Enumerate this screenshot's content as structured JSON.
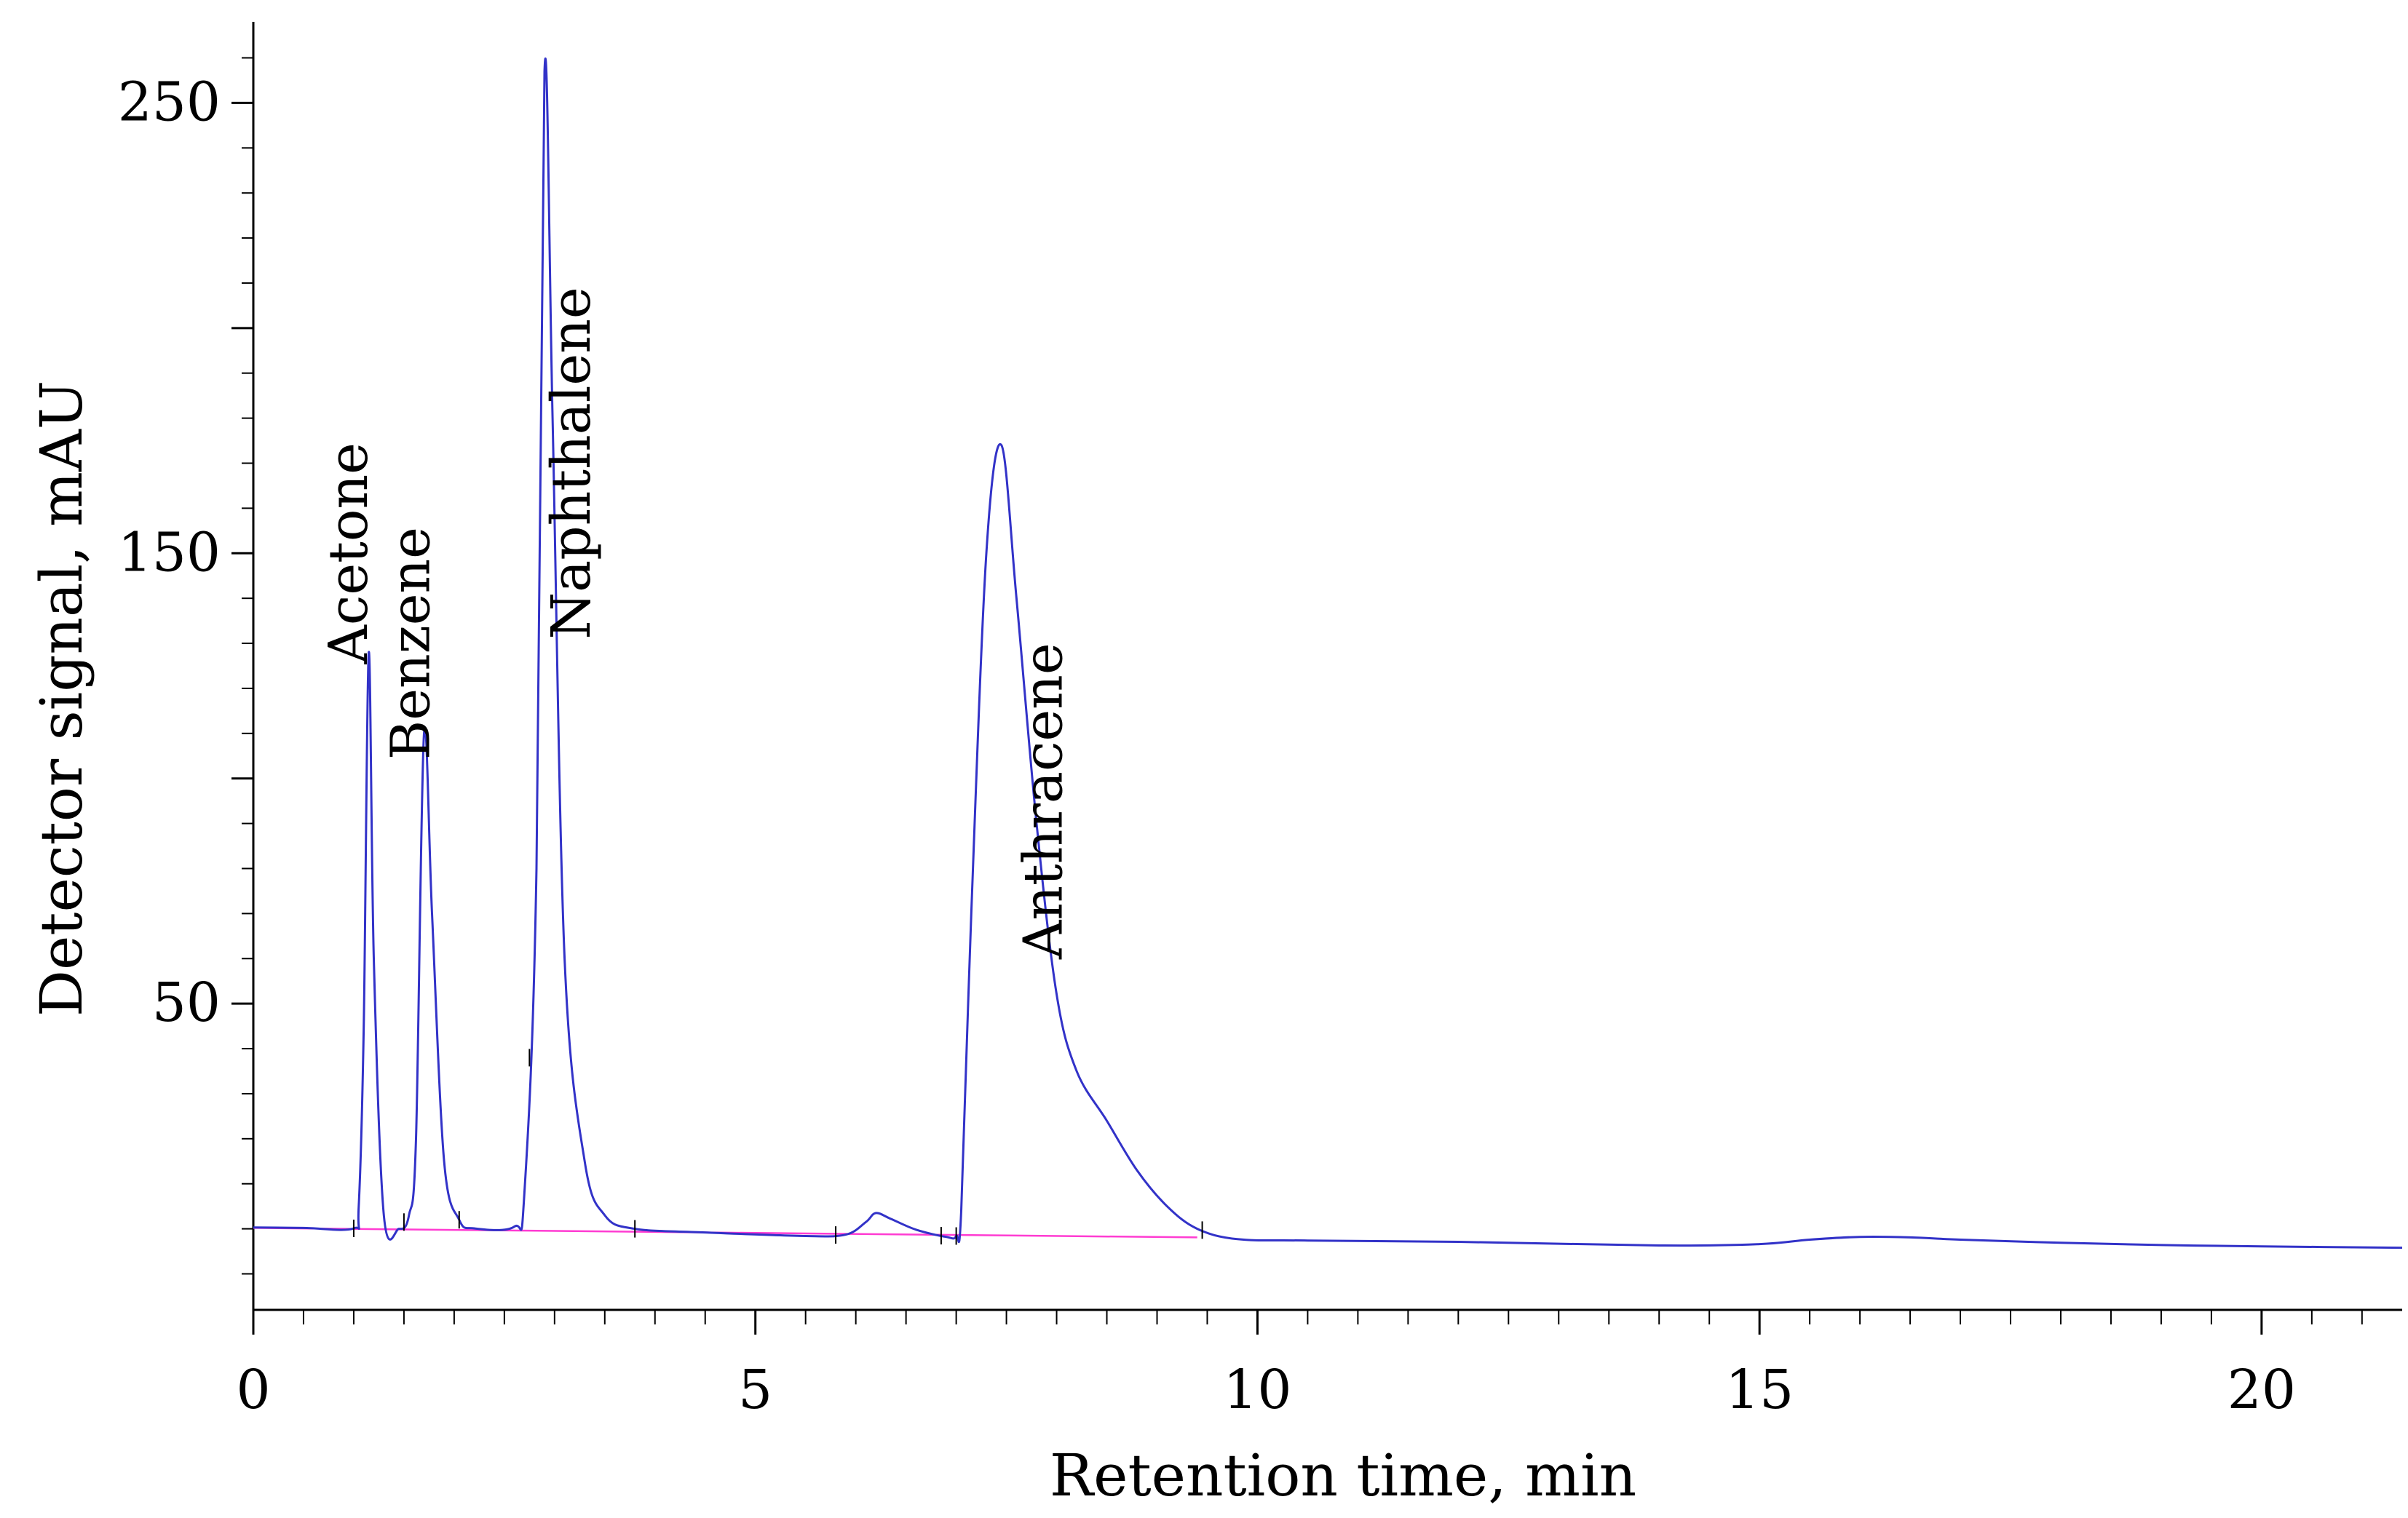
{
  "chart_data": {
    "type": "line",
    "title": "",
    "xlabel": "Retention time, min",
    "ylabel": "Detector signal, mAU",
    "xlim": [
      0,
      21.4
    ],
    "ylim": [
      -18,
      268
    ],
    "xticks": [
      0,
      5,
      10,
      15,
      20
    ],
    "xtick_labels": [
      "0",
      "5",
      "10",
      "15",
      "20"
    ],
    "yticks": [
      50,
      150,
      250
    ],
    "ytick_labels": [
      "50",
      "150",
      "250"
    ],
    "grid": false,
    "series": [
      {
        "name": "Detector signal",
        "color": "#3232c8",
        "x": [
          0,
          0.5,
          1.0,
          1.05,
          1.1,
          1.15,
          1.2,
          1.3,
          1.45,
          1.55,
          1.62,
          1.7,
          1.78,
          1.9,
          2.05,
          2.2,
          2.6,
          2.7,
          2.82,
          2.9,
          2.98,
          3.1,
          3.3,
          3.5,
          3.8,
          4.5,
          5.5,
          5.9,
          6.1,
          6.2,
          6.35,
          6.6,
          6.9,
          7.0,
          7.05,
          7.15,
          7.3,
          7.45,
          7.6,
          7.8,
          8.0,
          8.2,
          8.5,
          8.8,
          9.1,
          9.4,
          9.8,
          10.5,
          12,
          14,
          15,
          15.5,
          16,
          16.5,
          17,
          18,
          19,
          20,
          21.4
        ],
        "y": [
          0.3,
          0.2,
          0.1,
          5,
          45,
          128,
          60,
          3,
          0,
          3,
          20,
          110,
          70,
          15,
          2,
          0.1,
          0.5,
          8,
          80,
          257,
          180,
          60,
          15,
          3,
          0,
          -0.8,
          -1.6,
          -1.3,
          1.5,
          3.5,
          2.2,
          -0.2,
          -1.8,
          -1.6,
          4,
          70,
          150,
          174,
          140,
          90,
          52,
          35,
          24,
          13,
          5,
          0,
          -2.3,
          -2.6,
          -2.9,
          -3.7,
          -3.4,
          -2.4,
          -1.8,
          -1.9,
          -2.4,
          -3.1,
          -3.6,
          -3.9,
          -4.2
        ]
      },
      {
        "name": "Baseline",
        "color": "#ff3cd2",
        "x": [
          0,
          9.4
        ],
        "y": [
          0.2,
          -1.9
        ]
      }
    ],
    "peak_markers": [
      1.0,
      1.5,
      2.05,
      2.75,
      3.8,
      5.8,
      6.85,
      7.0,
      9.45
    ],
    "annotations": [
      {
        "text": "Acetone",
        "x": 1.13,
        "y": 150
      },
      {
        "text": "Benzene",
        "x": 1.75,
        "y": 130
      },
      {
        "text": "Naphthalene",
        "x": 3.35,
        "y": 170
      },
      {
        "text": "Anthracene",
        "x": 8.05,
        "y": 95
      }
    ]
  }
}
